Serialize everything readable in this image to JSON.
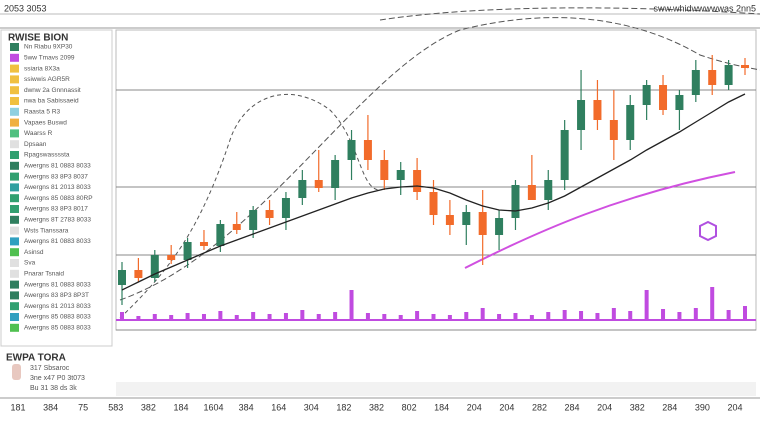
{
  "header": {
    "left": "2053  3053",
    "right": "sww.whidwwwwwas 2nn5"
  },
  "sidebar": {
    "title": "RWISE BION",
    "rows": [
      {
        "text": "Nn  Riabu  9XP30",
        "color": "#2f7f5f"
      },
      {
        "text": "5ww Tmavs  2099",
        "color": "#c04be0"
      },
      {
        "text": "ssiaria 8X3a",
        "color": "#f0c040"
      },
      {
        "text": "ssiwwis AGR5R",
        "color": "#f0c040"
      },
      {
        "text": "dwnw 2a Gnnnassit",
        "color": "#f0c040"
      },
      {
        "text": "nwa ba Sabissaeid",
        "color": "#f0c040"
      },
      {
        "text": "Raasta 5 R3",
        "color": "#8fd0e0"
      },
      {
        "text": "Vapaes Buswd",
        "color": "#f0b040"
      },
      {
        "text": "Waarss R",
        "color": "#50c080"
      },
      {
        "text": "Dpsaan",
        "color": "#e0e0e0"
      },
      {
        "text": "Rpagswassssta",
        "color": "#30a070"
      },
      {
        "text": "Awergns 81 0883 8033",
        "color": "#2f7f5f"
      },
      {
        "text": "Awergns 83 8P3 8037",
        "color": "#30a070"
      },
      {
        "text": "Awergns 81 2013 8033",
        "color": "#30a0a0"
      },
      {
        "text": "Awergns 85 0883 80RP",
        "color": "#30a070"
      },
      {
        "text": "Awergns 83 8P3 8017",
        "color": "#30a070"
      },
      {
        "text": "Awergns 8T 2783 8033",
        "color": "#2f7f5f"
      },
      {
        "text": "Wsts Tianssara",
        "color": "#e0e0e0"
      },
      {
        "text": "Awergns 81 0883 8033",
        "color": "#30a0c0"
      },
      {
        "text": "Asinsd",
        "color": "#50c050"
      },
      {
        "text": "Sva",
        "color": "#e0e0e0"
      },
      {
        "text": "Pnarar Tsnaid",
        "color": "#e0e0e0"
      },
      {
        "text": "Awergns 81 0883 8033",
        "color": "#2f7f5f"
      },
      {
        "text": "Awergns 83 8P3 8P3T",
        "color": "#2f7f5f"
      },
      {
        "text": "Awergns 81 2013 8033",
        "color": "#30a070"
      },
      {
        "text": "Awergns 85 0883 8033",
        "color": "#30a0c0"
      },
      {
        "text": "Awergns 85 0883 8033",
        "color": "#50c050"
      }
    ],
    "footer_title": "EWPA TORA",
    "footer_rows": [
      "317 Sbsaroc",
      "3ne  x47 P0 3t073",
      "Bu  31   38 ds 3k"
    ]
  },
  "chart_data": {
    "type": "candlestick",
    "up_color": "#2f7f5f",
    "down_color": "#f26b2a",
    "ma_color": "#222222",
    "volume_color": "#c04be0",
    "ylim": [
      0,
      300
    ],
    "vlim": [
      0,
      40
    ],
    "open": [
      45,
      60,
      52,
      75,
      70,
      88,
      84,
      106,
      100,
      120,
      112,
      132,
      150,
      142,
      170,
      190,
      170,
      150,
      160,
      138,
      115,
      105,
      118,
      95,
      112,
      145,
      130,
      150,
      200,
      230,
      210,
      190,
      225,
      245,
      220,
      235,
      260,
      245,
      265
    ],
    "high": [
      68,
      72,
      80,
      85,
      92,
      100,
      110,
      118,
      124,
      130,
      138,
      160,
      180,
      175,
      200,
      215,
      180,
      168,
      172,
      150,
      130,
      125,
      140,
      120,
      150,
      175,
      160,
      210,
      260,
      250,
      240,
      235,
      250,
      255,
      240,
      270,
      275,
      270,
      272
    ],
    "low": [
      25,
      48,
      48,
      66,
      62,
      80,
      78,
      96,
      92,
      105,
      100,
      125,
      138,
      130,
      150,
      160,
      140,
      135,
      130,
      105,
      95,
      85,
      65,
      80,
      100,
      130,
      120,
      140,
      180,
      200,
      170,
      180,
      210,
      215,
      200,
      228,
      235,
      240,
      255
    ],
    "close": [
      60,
      52,
      75,
      70,
      88,
      84,
      106,
      100,
      120,
      112,
      132,
      150,
      142,
      170,
      190,
      170,
      150,
      160,
      138,
      115,
      105,
      118,
      95,
      112,
      145,
      130,
      150,
      200,
      230,
      210,
      190,
      225,
      245,
      220,
      235,
      260,
      245,
      265,
      262
    ],
    "ma": [
      40,
      48,
      56,
      63,
      70,
      77,
      84,
      90,
      96,
      102,
      108,
      114,
      120,
      126,
      132,
      137,
      141,
      143,
      144,
      142,
      137,
      130,
      124,
      120,
      119,
      122,
      127,
      134,
      143,
      152,
      161,
      170,
      180,
      189,
      198,
      208,
      218,
      228,
      236
    ],
    "volume": [
      8,
      4,
      6,
      5,
      7,
      6,
      9,
      5,
      8,
      6,
      7,
      10,
      6,
      8,
      30,
      7,
      6,
      5,
      9,
      6,
      5,
      8,
      12,
      6,
      7,
      5,
      8,
      10,
      9,
      7,
      12,
      9,
      30,
      11,
      8,
      12,
      33,
      10,
      14
    ],
    "x_labels": [
      "181",
      "384",
      "75",
      "583",
      "382",
      "184",
      "1604",
      "384",
      "164",
      "304",
      "182",
      "382",
      "802",
      "184",
      "204",
      "204",
      "282",
      "284",
      "204",
      "382",
      "284",
      "390",
      "204"
    ]
  }
}
